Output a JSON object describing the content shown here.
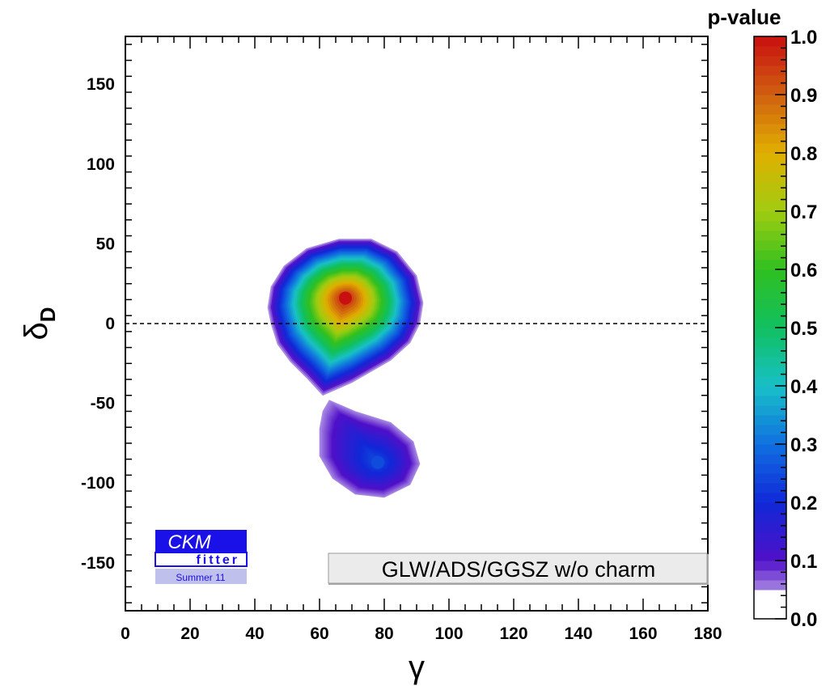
{
  "chart_data": {
    "type": "contour",
    "xlabel": "γ",
    "ylabel": "δ",
    "ylabel_sub": "D",
    "xlim": [
      0,
      180
    ],
    "ylim": [
      -180,
      180
    ],
    "x_ticks": [
      "0",
      "20",
      "40",
      "60",
      "80",
      "100",
      "120",
      "140",
      "160",
      "180"
    ],
    "y_ticks": [
      "-150",
      "-100",
      "-50",
      "0",
      "50",
      "100",
      "150"
    ],
    "reference_line": {
      "y": 0,
      "style": "dashed"
    },
    "colorbar": {
      "title": "p-value",
      "range": [
        0,
        1
      ],
      "ticks": [
        "0.0",
        "0.1",
        "0.2",
        "0.3",
        "0.4",
        "0.5",
        "0.6",
        "0.7",
        "0.8",
        "0.9",
        "1.0"
      ],
      "colors": [
        "#ffffff",
        "#5010c8",
        "#1028d8",
        "#1070e0",
        "#18c0c8",
        "#10c060",
        "#30c020",
        "#a0cc10",
        "#e0b000",
        "#d06010",
        "#c81010"
      ]
    },
    "regions": [
      {
        "peak_x": 68,
        "peak_y": 16,
        "peak_p": 1.0,
        "boundary": [
          [
            45,
            0
          ],
          [
            47,
            -13
          ],
          [
            51,
            -24
          ],
          [
            56,
            -34
          ],
          [
            61,
            -45
          ],
          [
            70,
            -37
          ],
          [
            82,
            -23
          ],
          [
            88,
            -12
          ],
          [
            91,
            0
          ],
          [
            92,
            13
          ],
          [
            90,
            30
          ],
          [
            84,
            45
          ],
          [
            76,
            53
          ],
          [
            66,
            53
          ],
          [
            56,
            47
          ],
          [
            49,
            36
          ],
          [
            45,
            23
          ],
          [
            44,
            10
          ]
        ]
      },
      {
        "peak_x": 78,
        "peak_y": -87,
        "peak_p": 0.25,
        "boundary": [
          [
            63,
            -48
          ],
          [
            71,
            -55
          ],
          [
            82,
            -62
          ],
          [
            89,
            -74
          ],
          [
            91,
            -88
          ],
          [
            88,
            -101
          ],
          [
            80,
            -109
          ],
          [
            71,
            -107
          ],
          [
            64,
            -97
          ],
          [
            60,
            -83
          ],
          [
            60,
            -66
          ],
          [
            61,
            -55
          ]
        ]
      }
    ]
  },
  "logo": {
    "line1": "CKM",
    "line2": "fitter",
    "line3": "Summer 11"
  },
  "legend": {
    "label": "GLW/ADS/GGSZ w/o charm"
  }
}
